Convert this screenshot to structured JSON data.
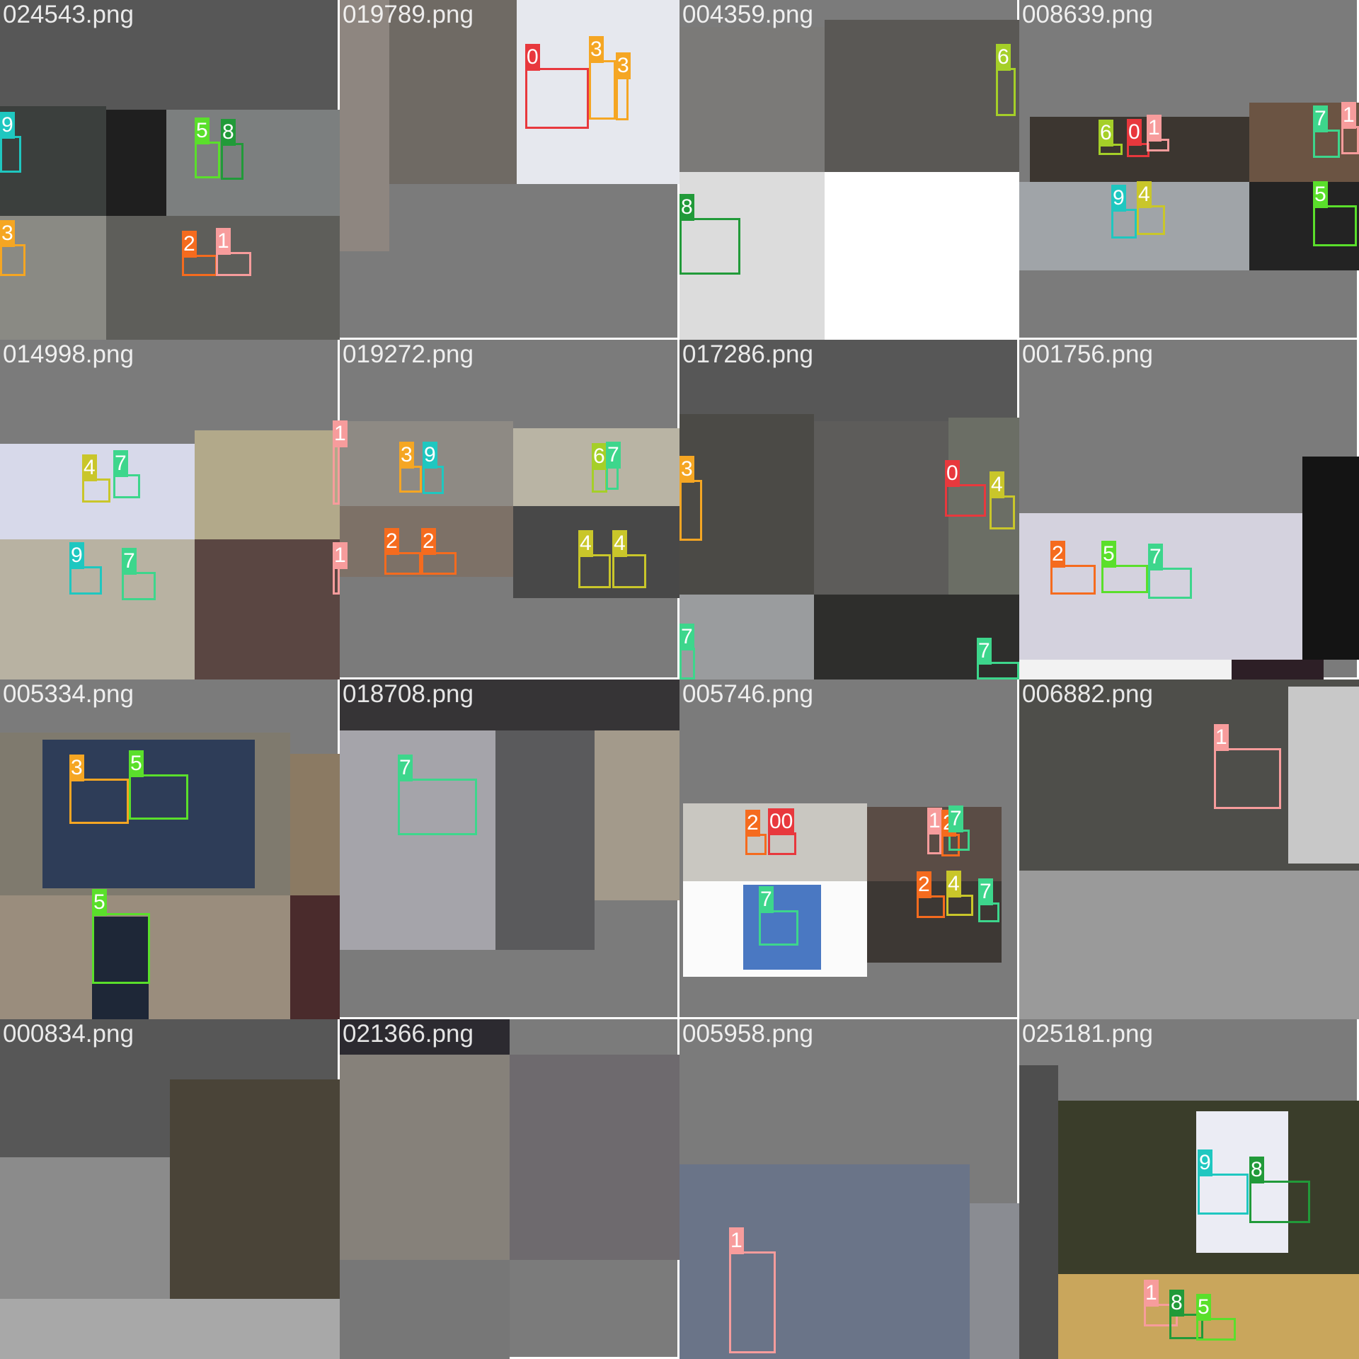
{
  "class_colors": {
    "0": "#e8383d",
    "1": "#f79c9c",
    "2": "#f56b1e",
    "3": "#f5a623",
    "4": "#c9c62a",
    "5": "#5adf2b",
    "6": "#a5cf28",
    "7": "#3dd68c",
    "8": "#219a39",
    "9": "#1fc7c0"
  },
  "tiles": [
    {
      "filename": "024543.png",
      "labels": [
        "9",
        "5",
        "8",
        "3",
        "2",
        "1"
      ]
    },
    {
      "filename": "019789.png",
      "labels": [
        "0",
        "3",
        "3"
      ]
    },
    {
      "filename": "004359.png",
      "labels": [
        "6",
        "8"
      ]
    },
    {
      "filename": "008639.png",
      "labels": [
        "6",
        "0",
        "1",
        "7",
        "1",
        "9",
        "4",
        "5"
      ]
    },
    {
      "filename": "014998.png",
      "labels": [
        "4",
        "7",
        "1",
        "9",
        "7",
        "1"
      ]
    },
    {
      "filename": "019272.png",
      "labels": [
        "3",
        "9",
        "6",
        "7",
        "2",
        "2",
        "4",
        "4"
      ]
    },
    {
      "filename": "017286.png",
      "labels": [
        "3",
        "0",
        "4",
        "7",
        "7"
      ]
    },
    {
      "filename": "001756.png",
      "labels": [
        "2",
        "5",
        "7"
      ]
    },
    {
      "filename": "005334.png",
      "labels": [
        "3",
        "5",
        "5"
      ]
    },
    {
      "filename": "018708.png",
      "labels": [
        "7"
      ]
    },
    {
      "filename": "005746.png",
      "labels": [
        "2",
        "00",
        "1",
        "2",
        "7",
        "7",
        "2",
        "4",
        "7"
      ]
    },
    {
      "filename": "006882.png",
      "labels": [
        "1"
      ]
    },
    {
      "filename": "000834.png",
      "labels": []
    },
    {
      "filename": "021366.png",
      "labels": []
    },
    {
      "filename": "005958.png",
      "labels": [
        "1"
      ]
    },
    {
      "filename": "025181.png",
      "labels": [
        "9",
        "8",
        "1",
        "8",
        "5"
      ]
    }
  ]
}
